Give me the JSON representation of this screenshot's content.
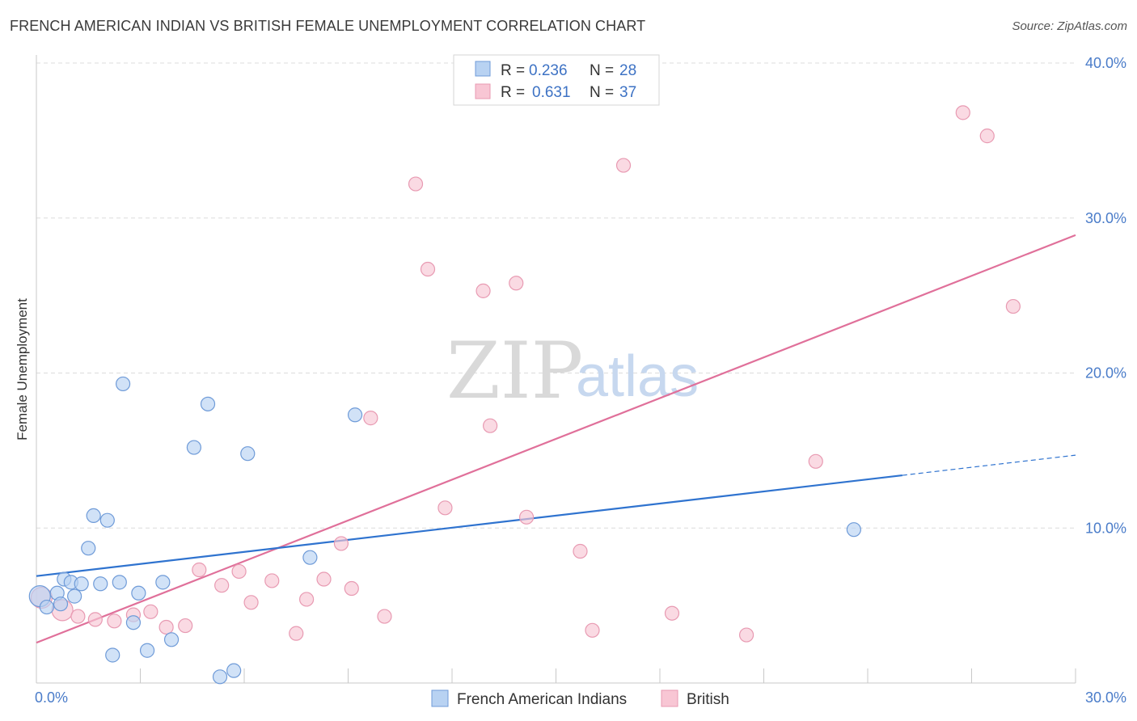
{
  "title": "FRENCH AMERICAN INDIAN VS BRITISH FEMALE UNEMPLOYMENT CORRELATION CHART",
  "source": "Source: ZipAtlas.com",
  "watermark": {
    "zip": "ZIP",
    "atlas": "atlas"
  },
  "colors": {
    "blue_fill": "#b8d2f2",
    "blue_stroke": "#6f9bd8",
    "blue_line": "#2f73cf",
    "pink_fill": "#f8c6d4",
    "pink_stroke": "#e89ab2",
    "pink_line": "#e0709a",
    "grid": "#dcdcdc",
    "tick_label": "#4a7cc9"
  },
  "legend": {
    "rows": [
      {
        "r_label": "R =",
        "r_value": "0.236",
        "n_label": "N =",
        "n_value": "28"
      },
      {
        "r_label": "R =",
        "r_value": "0.631",
        "n_label": "N =",
        "n_value": "37"
      }
    ]
  },
  "chart_data": {
    "type": "scatter",
    "title": "FRENCH AMERICAN INDIAN VS BRITISH FEMALE UNEMPLOYMENT CORRELATION CHART",
    "xlabel": "",
    "ylabel": "Female Unemployment",
    "xlim": [
      0,
      30
    ],
    "ylim": [
      0,
      40
    ],
    "x_tick_labels": [
      "0.0%",
      "30.0%"
    ],
    "y_ticks": [
      10,
      20,
      30,
      40
    ],
    "y_tick_labels": [
      "10.0%",
      "20.0%",
      "30.0%",
      "40.0%"
    ],
    "grid": true,
    "legend_position": "top-center",
    "series": [
      {
        "name": "French American Indians",
        "color": "#6f9bd8",
        "points": [
          [
            0.1,
            5.6
          ],
          [
            0.3,
            4.9
          ],
          [
            0.6,
            5.8
          ],
          [
            0.7,
            5.1
          ],
          [
            0.8,
            6.7
          ],
          [
            1.0,
            6.5
          ],
          [
            1.1,
            5.6
          ],
          [
            1.3,
            6.4
          ],
          [
            1.5,
            8.7
          ],
          [
            1.65,
            10.8
          ],
          [
            1.85,
            6.4
          ],
          [
            2.05,
            10.5
          ],
          [
            2.2,
            1.8
          ],
          [
            2.4,
            6.5
          ],
          [
            2.5,
            19.3
          ],
          [
            2.8,
            3.9
          ],
          [
            2.95,
            5.8
          ],
          [
            3.2,
            2.1
          ],
          [
            3.65,
            6.5
          ],
          [
            3.9,
            2.8
          ],
          [
            4.55,
            15.2
          ],
          [
            4.95,
            18.0
          ],
          [
            5.3,
            0.4
          ],
          [
            5.7,
            0.8
          ],
          [
            6.1,
            14.8
          ],
          [
            7.9,
            8.1
          ],
          [
            9.2,
            17.3
          ],
          [
            23.6,
            9.9
          ]
        ],
        "trend": {
          "x": [
            0,
            25
          ],
          "y": [
            6.9,
            13.4
          ],
          "dashed_extension": {
            "x": [
              25,
              30
            ],
            "y": [
              13.4,
              14.7
            ]
          }
        }
      },
      {
        "name": "British",
        "color": "#e89ab2",
        "points": [
          [
            0.15,
            5.5
          ],
          [
            0.75,
            4.7
          ],
          [
            1.2,
            4.3
          ],
          [
            1.7,
            4.1
          ],
          [
            2.25,
            4.0
          ],
          [
            2.8,
            4.4
          ],
          [
            3.3,
            4.6
          ],
          [
            3.75,
            3.6
          ],
          [
            4.3,
            3.7
          ],
          [
            4.7,
            7.3
          ],
          [
            5.35,
            6.3
          ],
          [
            5.85,
            7.2
          ],
          [
            6.2,
            5.2
          ],
          [
            6.8,
            6.6
          ],
          [
            7.5,
            3.2
          ],
          [
            7.8,
            5.4
          ],
          [
            8.3,
            6.7
          ],
          [
            8.8,
            9.0
          ],
          [
            9.1,
            6.1
          ],
          [
            9.65,
            17.1
          ],
          [
            10.05,
            4.3
          ],
          [
            10.95,
            32.2
          ],
          [
            11.3,
            26.7
          ],
          [
            11.8,
            11.3
          ],
          [
            12.9,
            25.3
          ],
          [
            13.1,
            16.6
          ],
          [
            13.85,
            25.8
          ],
          [
            14.15,
            10.7
          ],
          [
            15.7,
            8.5
          ],
          [
            16.05,
            3.4
          ],
          [
            16.95,
            33.4
          ],
          [
            18.35,
            4.5
          ],
          [
            20.5,
            3.1
          ],
          [
            22.5,
            14.3
          ],
          [
            26.75,
            36.8
          ],
          [
            27.45,
            35.3
          ],
          [
            28.2,
            24.3
          ]
        ],
        "trend": {
          "x": [
            0,
            30
          ],
          "y": [
            2.6,
            28.9
          ]
        }
      }
    ]
  }
}
